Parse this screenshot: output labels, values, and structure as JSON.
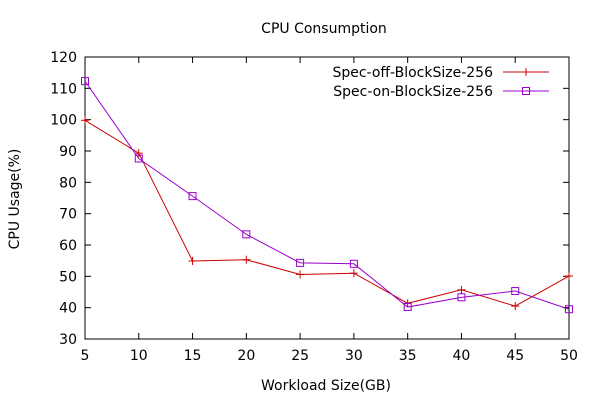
{
  "chart_data": {
    "type": "line",
    "title": "CPU Consumption",
    "xlabel": "Workload Size(GB)",
    "ylabel": "CPU Usage(%)",
    "x": [
      5,
      10,
      15,
      20,
      25,
      30,
      35,
      40,
      45,
      50
    ],
    "xticks": [
      5,
      10,
      15,
      20,
      25,
      30,
      35,
      40,
      45,
      50
    ],
    "yticks": [
      30,
      40,
      50,
      60,
      70,
      80,
      90,
      100,
      110,
      120
    ],
    "xlim": [
      5,
      50
    ],
    "ylim": [
      30,
      120
    ],
    "grid": false,
    "legend_position": "top-right",
    "series": [
      {
        "name": "Spec-off-BlockSize-256",
        "color": "#cc0000",
        "marker": "plus",
        "values": [
          99.8,
          89.3,
          54.9,
          55.3,
          50.6,
          51.0,
          41.4,
          45.7,
          40.5,
          50.1
        ]
      },
      {
        "name": "Spec-on-BlockSize-256",
        "color": "#9900cc",
        "marker": "square",
        "values": [
          112.3,
          87.6,
          75.6,
          63.4,
          54.3,
          54.0,
          40.2,
          43.3,
          45.3,
          39.5
        ]
      }
    ]
  }
}
